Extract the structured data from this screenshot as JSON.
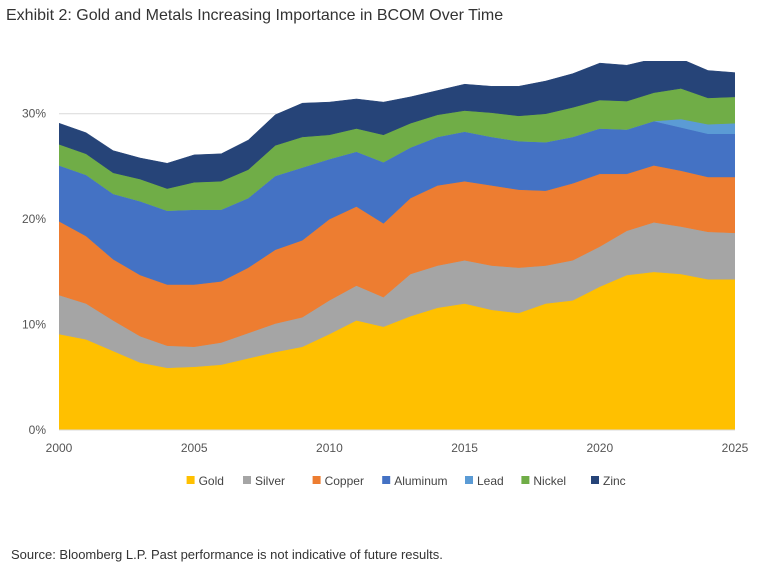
{
  "title": "Exhibit 2: Gold and Metals Increasing Importance in BCOM Over Time",
  "source": "Source: Bloomberg L.P. Past performance is not indicative of future results.",
  "chart_data": {
    "type": "area",
    "stacked": true,
    "title": "",
    "xlabel": "",
    "ylabel": "",
    "x": [
      2000,
      2001,
      2002,
      2003,
      2004,
      2005,
      2006,
      2007,
      2008,
      2009,
      2010,
      2011,
      2012,
      2013,
      2014,
      2015,
      2016,
      2017,
      2018,
      2019,
      2020,
      2021,
      2022,
      2023,
      2024,
      2025
    ],
    "xticks": [
      "2000",
      "2005",
      "2010",
      "2015",
      "2020",
      "2025"
    ],
    "xlim": [
      2000,
      2025
    ],
    "ylim": [
      0,
      35
    ],
    "yticks": [
      "0%",
      "10%",
      "20%",
      "30%"
    ],
    "yunit": "%",
    "grid": "horizontal",
    "legend": "bottom",
    "series": [
      {
        "name": "Gold",
        "color": "#FFC000",
        "values": [
          9.1,
          8.6,
          7.5,
          6.4,
          5.9,
          6.0,
          6.2,
          6.8,
          7.4,
          7.9,
          9.1,
          10.4,
          9.8,
          10.8,
          11.6,
          12.0,
          11.4,
          11.1,
          12.0,
          12.3,
          13.6,
          14.7,
          15.0,
          14.8,
          14.3,
          14.3
        ]
      },
      {
        "name": "Silver",
        "color": "#A5A5A5",
        "values": [
          3.7,
          3.4,
          2.9,
          2.5,
          2.1,
          1.9,
          2.1,
          2.4,
          2.7,
          2.8,
          3.2,
          3.3,
          2.8,
          4.0,
          4.0,
          4.1,
          4.2,
          4.3,
          3.6,
          3.8,
          3.8,
          4.2,
          4.7,
          4.5,
          4.5,
          4.4
        ]
      },
      {
        "name": "Copper",
        "color": "#ED7D31",
        "values": [
          7.0,
          6.4,
          5.8,
          5.8,
          5.8,
          5.9,
          5.8,
          6.2,
          7.0,
          7.3,
          7.7,
          7.5,
          7.0,
          7.2,
          7.6,
          7.5,
          7.6,
          7.4,
          7.1,
          7.3,
          6.9,
          5.4,
          5.4,
          5.3,
          5.2,
          5.3
        ]
      },
      {
        "name": "Aluminum",
        "color": "#4472C4",
        "values": [
          5.3,
          5.8,
          6.2,
          7.0,
          7.0,
          7.1,
          6.8,
          6.6,
          7.0,
          6.9,
          5.7,
          5.2,
          5.8,
          4.8,
          4.6,
          4.7,
          4.6,
          4.6,
          4.6,
          4.4,
          4.3,
          4.2,
          4.2,
          4.1,
          4.1,
          4.1
        ]
      },
      {
        "name": "Lead",
        "color": "#5B9BD5",
        "values": [
          0,
          0,
          0,
          0,
          0,
          0,
          0,
          0,
          0,
          0,
          0,
          0,
          0,
          0,
          0,
          0,
          0,
          0,
          0,
          0,
          0,
          0,
          0,
          0.8,
          0.9,
          1.0
        ]
      },
      {
        "name": "Nickel",
        "color": "#70AD47",
        "values": [
          2.0,
          2.0,
          2.0,
          2.1,
          2.1,
          2.6,
          2.7,
          2.7,
          2.9,
          2.9,
          2.3,
          2.2,
          2.6,
          2.3,
          2.1,
          2.0,
          2.3,
          2.4,
          2.7,
          2.8,
          2.7,
          2.7,
          2.7,
          2.9,
          2.5,
          2.5
        ]
      },
      {
        "name": "Zinc",
        "color": "#264478",
        "values": [
          2.0,
          2.0,
          2.1,
          2.0,
          2.4,
          2.6,
          2.6,
          2.8,
          2.9,
          3.2,
          3.1,
          2.8,
          3.1,
          2.5,
          2.3,
          2.5,
          2.5,
          2.8,
          3.1,
          3.2,
          3.5,
          3.4,
          3.2,
          2.8,
          2.6,
          2.3
        ]
      }
    ]
  }
}
